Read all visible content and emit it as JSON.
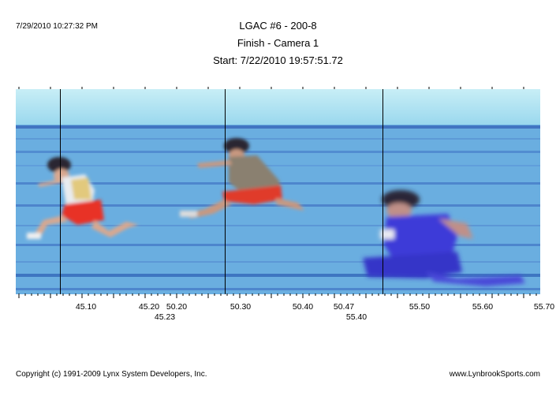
{
  "print_date": "7/29/2010 10:27:32 PM",
  "header": {
    "title": "LGAC #6 - 200-8",
    "subtitle": "Finish - Camera 1",
    "start": "Start: 7/22/2010 19:57:51.72"
  },
  "time_axis": {
    "row1": [
      "45.10",
      "45.20",
      "50.20",
      "50.30",
      "50.40",
      "50.47",
      "55.50",
      "55.60",
      "55.70"
    ],
    "row2": [
      "45.23",
      "55.40"
    ]
  },
  "footer": {
    "copyright": "Copyright (c) 1991-2009 Lynx System Developers, Inc.",
    "website": "www.LynbrookSports.com"
  },
  "colors": {
    "sky": "#c4ecf4",
    "track": "#6aaee0",
    "lane_line": "#3a72c0",
    "runner1_shorts": "#e83028",
    "runner2_shorts": "#e03a2a",
    "runner3_kit": "#3a3ad8"
  }
}
